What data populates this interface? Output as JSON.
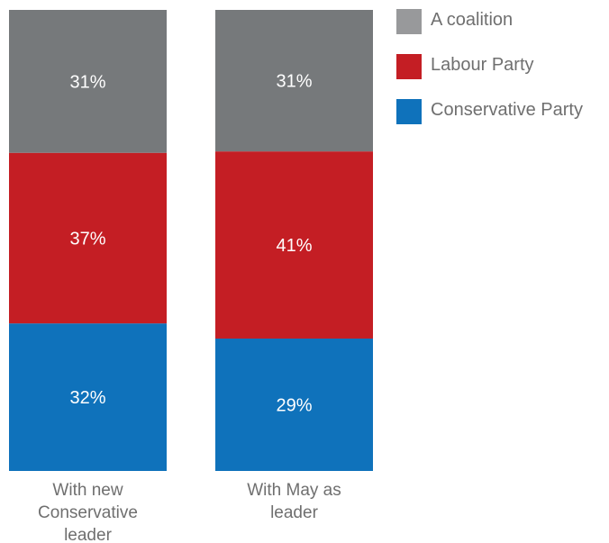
{
  "chart_data": {
    "type": "bar",
    "stacked": true,
    "categories": [
      [
        "With new",
        "Conservative",
        "leader"
      ],
      [
        "With May as",
        "leader"
      ]
    ],
    "series": [
      {
        "name": "Conservative Party",
        "color": "#0f72bb",
        "values": [
          32,
          29
        ],
        "labels": [
          "32%",
          "29%"
        ]
      },
      {
        "name": "Labour Party",
        "color": "#c41e24",
        "values": [
          37,
          41
        ],
        "labels": [
          "37%",
          "41%"
        ]
      },
      {
        "name": "A coalition",
        "color": "#76797b",
        "values": [
          31,
          31
        ],
        "labels": [
          "31%",
          "31%"
        ]
      }
    ],
    "legend_order": [
      "A coalition",
      "Labour Party",
      "Conservative Party"
    ],
    "legend_colors": [
      "#98999b",
      "#c41e24",
      "#0f72bb"
    ],
    "legend_position": "right"
  }
}
